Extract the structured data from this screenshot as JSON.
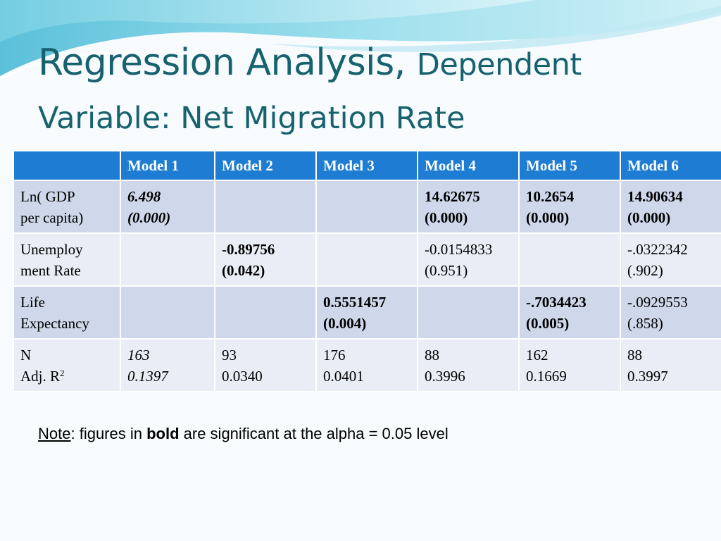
{
  "title": {
    "part1": "Regression Analysis, ",
    "part2": "Dependent",
    "line2": "Variable: Net Migration Rate"
  },
  "table": {
    "corner": "",
    "headers": [
      "Model 1",
      "Model 2",
      "Model 3",
      "Model 4",
      "Model 5",
      "Model 6"
    ],
    "rows": [
      {
        "label": [
          "Ln( GDP",
          "per capita)"
        ],
        "cells": [
          [
            "6.498",
            "(0.000)"
          ],
          [
            "",
            ""
          ],
          [
            "",
            ""
          ],
          [
            "14.62675",
            "(0.000)"
          ],
          [
            "10.2654",
            "(0.000)"
          ],
          [
            "14.90634",
            "(0.000)"
          ]
        ]
      },
      {
        "label": [
          "Unemploy",
          "ment Rate"
        ],
        "cells": [
          [
            "",
            ""
          ],
          [
            "-0.89756",
            "(0.042)"
          ],
          [
            "",
            ""
          ],
          [
            "-0.0154833",
            "(0.951)"
          ],
          [
            "",
            ""
          ],
          [
            "-.0322342",
            "(.902)"
          ]
        ]
      },
      {
        "label": [
          "Life",
          "Expectancy"
        ],
        "cells": [
          [
            "",
            ""
          ],
          [
            "",
            ""
          ],
          [
            "0.5551457",
            "(0.004)"
          ],
          [
            "",
            ""
          ],
          [
            "-.7034423",
            "(0.005)"
          ],
          [
            "-.0929553",
            "(.858)"
          ]
        ]
      },
      {
        "label": [
          "N",
          "Adj. R",
          "2"
        ],
        "cells": [
          [
            "163",
            "0.1397"
          ],
          [
            "93",
            "0.0340"
          ],
          [
            "176",
            "0.0401"
          ],
          [
            "88",
            "0.3996"
          ],
          [
            "162",
            "0.1669"
          ],
          [
            "88",
            "0.3997"
          ]
        ]
      }
    ]
  },
  "note": {
    "label": "Note",
    "text1": ": figures in ",
    "bold_word": "bold",
    "text2": " are significant at the alpha = 0.05 level"
  },
  "colors": {
    "title": "#17626f",
    "header_bg": "#1e7dd2",
    "row_odd": "#cfd8ea",
    "row_even": "#e9edf5",
    "swoosh": "#5cc6dc"
  }
}
